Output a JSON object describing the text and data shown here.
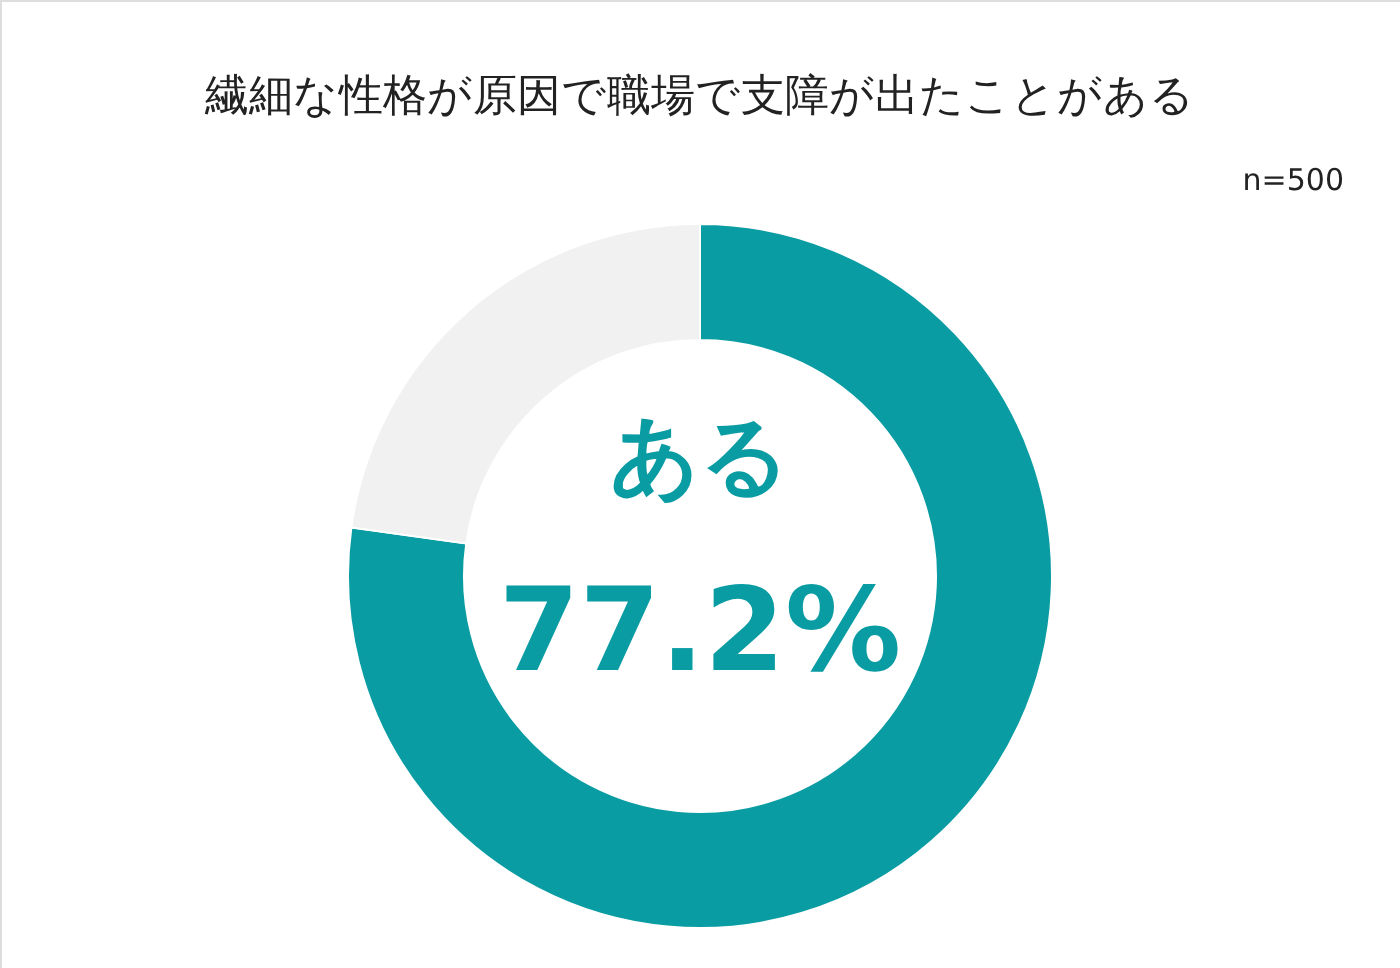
{
  "chart_data": {
    "type": "donut",
    "title": "繊細な性格が原因で職場で支障が出たことがある",
    "categories": [
      "ある",
      null
    ],
    "values": [
      77.2,
      22.8
    ],
    "colors": [
      "#0a9ca3",
      "#f1f1f1"
    ],
    "value_labels": [
      "77.2%",
      null
    ],
    "annotations": [
      "n=500"
    ]
  }
}
